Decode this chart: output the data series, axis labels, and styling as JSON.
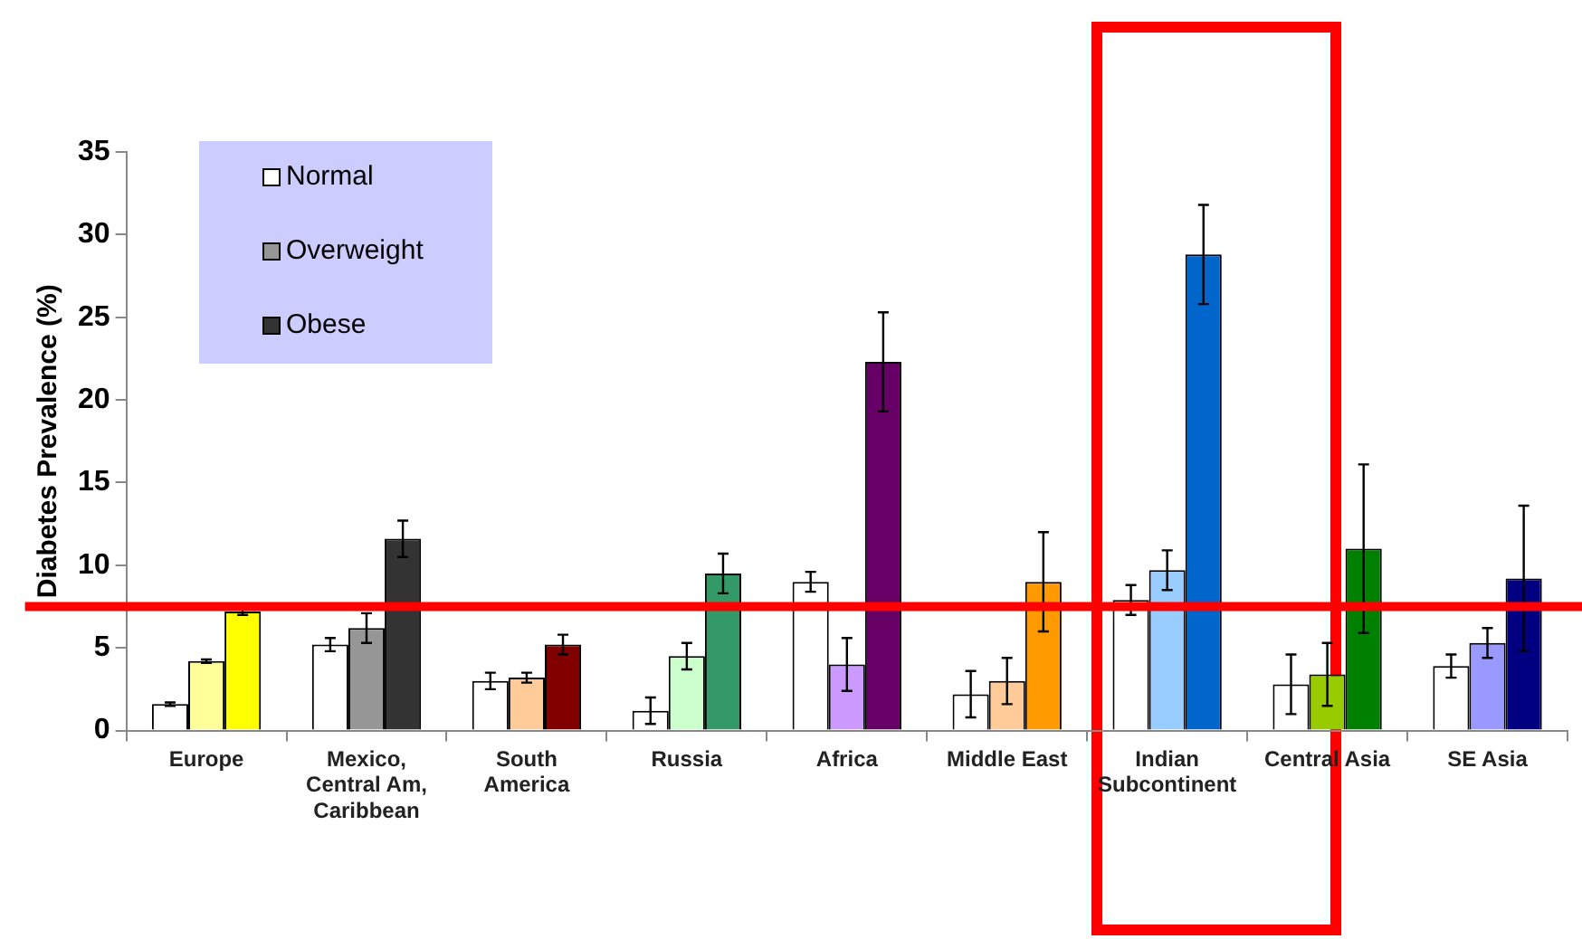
{
  "chart_data": {
    "type": "bar",
    "ylabel": "Diabetes Prevalence (%)",
    "categories": [
      "Europe",
      "Mexico, Central Am, Caribbean",
      "South America",
      "Russia",
      "Africa",
      "Middle East",
      "Indian Subcontinent",
      "Central Asia",
      "SE Asia"
    ],
    "series": [
      {
        "name": "Normal",
        "color": "#ffffff",
        "colors": [
          "#ffffff",
          "#ffffff",
          "#ffffff",
          "#ffffff",
          "#ffffff",
          "#ffffff",
          "#ffffff",
          "#ffffff",
          "#ffffff"
        ],
        "values": [
          1.6,
          5.2,
          3.0,
          1.2,
          9.0,
          2.2,
          7.9,
          2.8,
          3.9
        ],
        "errors": [
          0.1,
          0.4,
          0.5,
          0.8,
          0.6,
          1.4,
          0.9,
          1.8,
          0.7
        ]
      },
      {
        "name": "Overweight",
        "color": "#969696",
        "colors": [
          "#ffff99",
          "#969696",
          "#ffcc99",
          "#ccffcc",
          "#cc99ff",
          "#ffcc99",
          "#99ccff",
          "#99cc00",
          "#9999ff"
        ],
        "values": [
          4.2,
          6.2,
          3.2,
          4.5,
          4.0,
          3.0,
          9.7,
          3.4,
          5.3
        ],
        "errors": [
          0.1,
          0.9,
          0.3,
          0.8,
          1.6,
          1.4,
          1.2,
          1.9,
          0.9
        ]
      },
      {
        "name": "Obese",
        "color": "#333333",
        "colors": [
          "#ffff00",
          "#333333",
          "#800000",
          "#339966",
          "#660066",
          "#ff9900",
          "#0066cc",
          "#008000",
          "#000080"
        ],
        "values": [
          7.2,
          11.6,
          5.2,
          9.5,
          22.3,
          9.0,
          28.8,
          11.0,
          9.2
        ],
        "errors": [
          0.2,
          1.1,
          0.6,
          1.2,
          3.0,
          3.0,
          3.0,
          5.1,
          4.4
        ]
      }
    ],
    "ylim": [
      0,
      35
    ],
    "yticks": [
      0,
      5,
      10,
      15,
      20,
      25,
      30,
      35
    ],
    "ref_lines": [
      {
        "axis": "y",
        "value": 7.5,
        "color": "#ff0000"
      }
    ],
    "legend": "top left",
    "grid": false
  }
}
